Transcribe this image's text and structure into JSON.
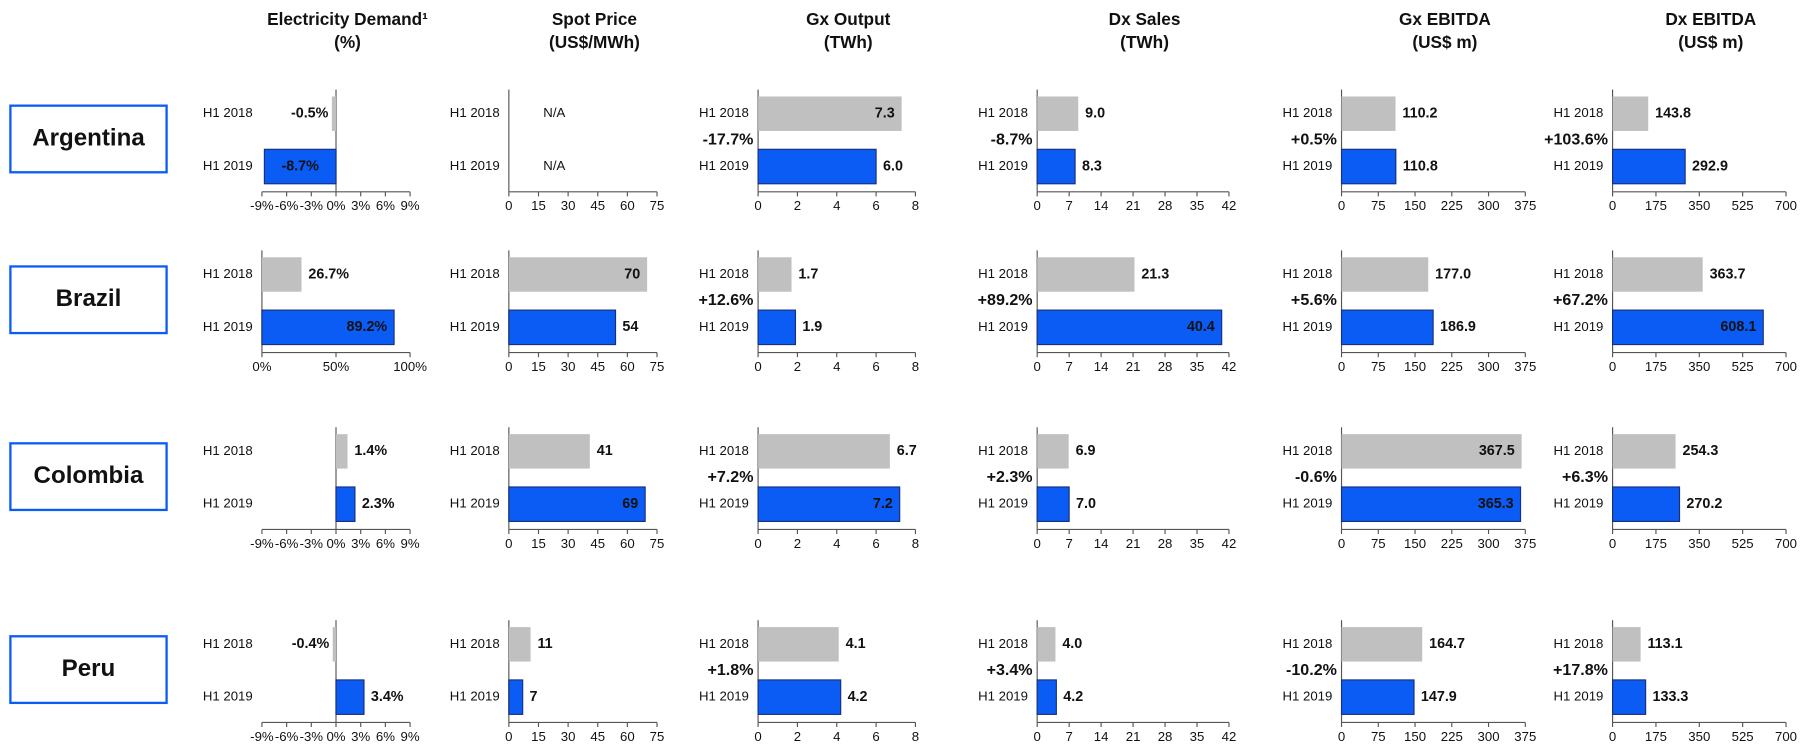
{
  "columns": [
    {
      "title": "Electricity Demand¹",
      "unit": "(%)"
    },
    {
      "title": "Spot Price",
      "unit": "(US$/MWh)"
    },
    {
      "title": "Gx Output",
      "unit": "(TWh)"
    },
    {
      "title": "Dx Sales",
      "unit": "(TWh)"
    },
    {
      "title": "Gx EBITDA",
      "unit": "(US$ m)"
    },
    {
      "title": "Dx EBITDA",
      "unit": "(US$ m)"
    }
  ],
  "countries": [
    "Argentina",
    "Brazil",
    "Colombia",
    "Peru"
  ],
  "chart_data": [
    {
      "type": "bar",
      "categories": [
        "H1 2018",
        "H1 2019"
      ],
      "values": [
        -0.5,
        -8.7
      ],
      "value_labels": [
        "-0.5%",
        "-8.7%"
      ],
      "colors": [
        "#c0c0c0",
        "#0a5cf5"
      ],
      "xlim": [
        -9,
        9
      ],
      "xticks": [
        {
          "value": -9,
          "label": "-9%"
        },
        {
          "value": -6,
          "label": "-6%"
        },
        {
          "value": -3,
          "label": "-3%"
        },
        {
          "value": 0,
          "label": "0%"
        },
        {
          "value": 3,
          "label": "3%"
        },
        {
          "value": 6,
          "label": "6%"
        },
        {
          "value": 9,
          "label": "9%"
        }
      ]
    },
    {
      "type": "bar",
      "categories": [
        "H1 2018",
        "H1 2019"
      ],
      "values": [
        null,
        null
      ],
      "value_labels": [
        "N/A",
        "N/A"
      ],
      "colors": [
        "#c0c0c0",
        "#0a5cf5"
      ],
      "xlim": [
        0,
        75
      ],
      "xticks": [
        0,
        15,
        30,
        45,
        60,
        75
      ]
    },
    {
      "type": "bar",
      "categories": [
        "H1 2018",
        "H1 2019"
      ],
      "values": [
        7.3,
        6.0
      ],
      "value_labels": [
        "7.3",
        "6.0"
      ],
      "colors": [
        "#c0c0c0",
        "#0a5cf5"
      ],
      "xlim": [
        0,
        8
      ],
      "xticks": [
        0,
        2,
        4,
        6,
        8
      ],
      "annotation": "-17.7%"
    },
    {
      "type": "bar",
      "categories": [
        "H1 2018",
        "H1 2019"
      ],
      "values": [
        9.0,
        8.3
      ],
      "value_labels": [
        "9.0",
        "8.3"
      ],
      "colors": [
        "#c0c0c0",
        "#0a5cf5"
      ],
      "xlim": [
        0,
        42
      ],
      "xticks": [
        0,
        7,
        14,
        21,
        28,
        35,
        42
      ],
      "annotation": "-8.7%"
    },
    {
      "type": "bar",
      "categories": [
        "H1 2018",
        "H1 2019"
      ],
      "values": [
        110.2,
        110.8
      ],
      "value_labels": [
        "110.2",
        "110.8"
      ],
      "colors": [
        "#c0c0c0",
        "#0a5cf5"
      ],
      "xlim": [
        0,
        375
      ],
      "xticks": [
        0,
        75,
        150,
        225,
        300,
        375
      ],
      "annotation": "+0.5%"
    },
    {
      "type": "bar",
      "categories": [
        "H1 2018",
        "H1 2019"
      ],
      "values": [
        143.8,
        292.9
      ],
      "value_labels": [
        "143.8",
        "292.9"
      ],
      "colors": [
        "#c0c0c0",
        "#0a5cf5"
      ],
      "xlim": [
        0,
        700
      ],
      "xticks": [
        0,
        175,
        350,
        525,
        700
      ],
      "annotation": "+103.6%"
    },
    {
      "type": "bar",
      "categories": [
        "H1 2018",
        "H1 2019"
      ],
      "values": [
        26.7,
        89.2
      ],
      "value_labels": [
        "26.7%",
        "89.2%"
      ],
      "colors": [
        "#c0c0c0",
        "#0a5cf5"
      ],
      "xlim": [
        0,
        100
      ],
      "xticks": [
        {
          "value": 0,
          "label": "0%"
        },
        {
          "value": 50,
          "label": "50%"
        },
        {
          "value": 100,
          "label": "100%"
        }
      ]
    },
    {
      "type": "bar",
      "categories": [
        "H1 2018",
        "H1 2019"
      ],
      "values": [
        70,
        54
      ],
      "value_labels": [
        "70",
        "54"
      ],
      "colors": [
        "#c0c0c0",
        "#0a5cf5"
      ],
      "xlim": [
        0,
        75
      ],
      "xticks": [
        0,
        15,
        30,
        45,
        60,
        75
      ]
    },
    {
      "type": "bar",
      "categories": [
        "H1 2018",
        "H1 2019"
      ],
      "values": [
        1.7,
        1.9
      ],
      "value_labels": [
        "1.7",
        "1.9"
      ],
      "colors": [
        "#c0c0c0",
        "#0a5cf5"
      ],
      "xlim": [
        0,
        8
      ],
      "xticks": [
        0,
        2,
        4,
        6,
        8
      ],
      "annotation": "+12.6%"
    },
    {
      "type": "bar",
      "categories": [
        "H1 2018",
        "H1 2019"
      ],
      "values": [
        21.3,
        40.4
      ],
      "value_labels": [
        "21.3",
        "40.4"
      ],
      "colors": [
        "#c0c0c0",
        "#0a5cf5"
      ],
      "xlim": [
        0,
        42
      ],
      "xticks": [
        0,
        7,
        14,
        21,
        28,
        35,
        42
      ],
      "annotation": "+89.2%"
    },
    {
      "type": "bar",
      "categories": [
        "H1 2018",
        "H1 2019"
      ],
      "values": [
        177.0,
        186.9
      ],
      "value_labels": [
        "177.0",
        "186.9"
      ],
      "colors": [
        "#c0c0c0",
        "#0a5cf5"
      ],
      "xlim": [
        0,
        375
      ],
      "xticks": [
        0,
        75,
        150,
        225,
        300,
        375
      ],
      "annotation": "+5.6%"
    },
    {
      "type": "bar",
      "categories": [
        "H1 2018",
        "H1 2019"
      ],
      "values": [
        363.7,
        608.1
      ],
      "value_labels": [
        "363.7",
        "608.1"
      ],
      "colors": [
        "#c0c0c0",
        "#0a5cf5"
      ],
      "xlim": [
        0,
        700
      ],
      "xticks": [
        0,
        175,
        350,
        525,
        700
      ],
      "annotation": "+67.2%"
    },
    {
      "type": "bar",
      "categories": [
        "H1 2018",
        "H1 2019"
      ],
      "values": [
        1.4,
        2.3
      ],
      "value_labels": [
        "1.4%",
        "2.3%"
      ],
      "colors": [
        "#c0c0c0",
        "#0a5cf5"
      ],
      "xlim": [
        -9,
        9
      ],
      "xticks": [
        {
          "value": -9,
          "label": "-9%"
        },
        {
          "value": -6,
          "label": "-6%"
        },
        {
          "value": -3,
          "label": "-3%"
        },
        {
          "value": 0,
          "label": "0%"
        },
        {
          "value": 3,
          "label": "3%"
        },
        {
          "value": 6,
          "label": "6%"
        },
        {
          "value": 9,
          "label": "9%"
        }
      ]
    },
    {
      "type": "bar",
      "categories": [
        "H1 2018",
        "H1 2019"
      ],
      "values": [
        41,
        69
      ],
      "value_labels": [
        "41",
        "69"
      ],
      "colors": [
        "#c0c0c0",
        "#0a5cf5"
      ],
      "xlim": [
        0,
        75
      ],
      "xticks": [
        0,
        15,
        30,
        45,
        60,
        75
      ]
    },
    {
      "type": "bar",
      "categories": [
        "H1 2018",
        "H1 2019"
      ],
      "values": [
        6.7,
        7.2
      ],
      "value_labels": [
        "6.7",
        "7.2"
      ],
      "colors": [
        "#c0c0c0",
        "#0a5cf5"
      ],
      "xlim": [
        0,
        8
      ],
      "xticks": [
        0,
        2,
        4,
        6,
        8
      ],
      "annotation": "+7.2%"
    },
    {
      "type": "bar",
      "categories": [
        "H1 2018",
        "H1 2019"
      ],
      "values": [
        6.9,
        7.0
      ],
      "value_labels": [
        "6.9",
        "7.0"
      ],
      "colors": [
        "#c0c0c0",
        "#0a5cf5"
      ],
      "xlim": [
        0,
        42
      ],
      "xticks": [
        0,
        7,
        14,
        21,
        28,
        35,
        42
      ],
      "annotation": "+2.3%"
    },
    {
      "type": "bar",
      "categories": [
        "H1 2018",
        "H1 2019"
      ],
      "values": [
        367.5,
        365.3
      ],
      "value_labels": [
        "367.5",
        "365.3"
      ],
      "colors": [
        "#c0c0c0",
        "#0a5cf5"
      ],
      "xlim": [
        0,
        375
      ],
      "xticks": [
        0,
        75,
        150,
        225,
        300,
        375
      ],
      "annotation": "-0.6%"
    },
    {
      "type": "bar",
      "categories": [
        "H1 2018",
        "H1 2019"
      ],
      "values": [
        254.3,
        270.2
      ],
      "value_labels": [
        "254.3",
        "270.2"
      ],
      "colors": [
        "#c0c0c0",
        "#0a5cf5"
      ],
      "xlim": [
        0,
        700
      ],
      "xticks": [
        0,
        175,
        350,
        525,
        700
      ],
      "annotation": "+6.3%"
    },
    {
      "type": "bar",
      "categories": [
        "H1 2018",
        "H1 2019"
      ],
      "values": [
        -0.4,
        3.4
      ],
      "value_labels": [
        "-0.4%",
        "3.4%"
      ],
      "colors": [
        "#c0c0c0",
        "#0a5cf5"
      ],
      "xlim": [
        -9,
        9
      ],
      "xticks": [
        {
          "value": -9,
          "label": "-9%"
        },
        {
          "value": -6,
          "label": "-6%"
        },
        {
          "value": -3,
          "label": "-3%"
        },
        {
          "value": 0,
          "label": "0%"
        },
        {
          "value": 3,
          "label": "3%"
        },
        {
          "value": 6,
          "label": "6%"
        },
        {
          "value": 9,
          "label": "9%"
        }
      ]
    },
    {
      "type": "bar",
      "categories": [
        "H1 2018",
        "H1 2019"
      ],
      "values": [
        11,
        7
      ],
      "value_labels": [
        "11",
        "7"
      ],
      "colors": [
        "#c0c0c0",
        "#0a5cf5"
      ],
      "xlim": [
        0,
        75
      ],
      "xticks": [
        0,
        15,
        30,
        45,
        60,
        75
      ]
    },
    {
      "type": "bar",
      "categories": [
        "H1 2018",
        "H1 2019"
      ],
      "values": [
        4.1,
        4.2
      ],
      "value_labels": [
        "4.1",
        "4.2"
      ],
      "colors": [
        "#c0c0c0",
        "#0a5cf5"
      ],
      "xlim": [
        0,
        8
      ],
      "xticks": [
        0,
        2,
        4,
        6,
        8
      ],
      "annotation": "+1.8%"
    },
    {
      "type": "bar",
      "categories": [
        "H1 2018",
        "H1 2019"
      ],
      "values": [
        4.0,
        4.2
      ],
      "value_labels": [
        "4.0",
        "4.2"
      ],
      "colors": [
        "#c0c0c0",
        "#0a5cf5"
      ],
      "xlim": [
        0,
        42
      ],
      "xticks": [
        0,
        7,
        14,
        21,
        28,
        35,
        42
      ],
      "annotation": "+3.4%"
    },
    {
      "type": "bar",
      "categories": [
        "H1 2018",
        "H1 2019"
      ],
      "values": [
        164.7,
        147.9
      ],
      "value_labels": [
        "164.7",
        "147.9"
      ],
      "colors": [
        "#c0c0c0",
        "#0a5cf5"
      ],
      "xlim": [
        0,
        375
      ],
      "xticks": [
        0,
        75,
        150,
        225,
        300,
        375
      ],
      "annotation": "-10.2%"
    },
    {
      "type": "bar",
      "categories": [
        "H1 2018",
        "H1 2019"
      ],
      "values": [
        113.1,
        133.3
      ],
      "value_labels": [
        "113.1",
        "133.3"
      ],
      "colors": [
        "#c0c0c0",
        "#0a5cf5"
      ],
      "xlim": [
        0,
        700
      ],
      "xticks": [
        0,
        175,
        350,
        525,
        700
      ],
      "annotation": "+17.8%"
    }
  ]
}
